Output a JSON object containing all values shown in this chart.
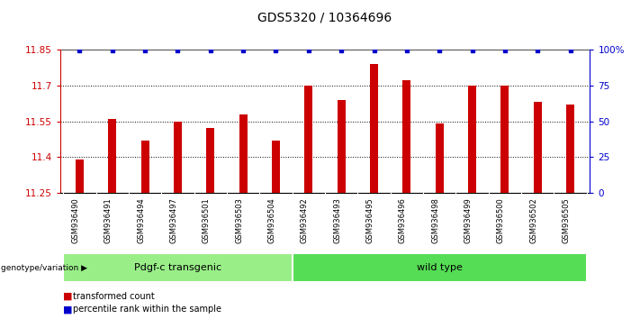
{
  "title": "GDS5320 / 10364696",
  "categories": [
    "GSM936490",
    "GSM936491",
    "GSM936494",
    "GSM936497",
    "GSM936501",
    "GSM936503",
    "GSM936504",
    "GSM936492",
    "GSM936493",
    "GSM936495",
    "GSM936496",
    "GSM936498",
    "GSM936499",
    "GSM936500",
    "GSM936502",
    "GSM936505"
  ],
  "bar_values": [
    11.39,
    11.56,
    11.47,
    11.55,
    11.52,
    11.58,
    11.47,
    11.7,
    11.64,
    11.79,
    11.72,
    11.54,
    11.7,
    11.7,
    11.63,
    11.62
  ],
  "bar_color": "#cc0000",
  "percentile_color": "#0000cc",
  "ymin": 11.25,
  "ymax": 11.85,
  "y_ticks": [
    11.25,
    11.4,
    11.55,
    11.7,
    11.85
  ],
  "y_right_ticks": [
    0,
    25,
    50,
    75,
    100
  ],
  "y_right_labels": [
    "0",
    "25",
    "50",
    "75",
    "100%"
  ],
  "group1_label": "Pdgf-c transgenic",
  "group2_label": "wild type",
  "group1_count": 7,
  "group2_count": 9,
  "genotype_label": "genotype/variation",
  "legend_bar_label": "transformed count",
  "legend_pct_label": "percentile rank within the sample",
  "group1_color": "#99ee88",
  "group2_color": "#55dd55",
  "bg_color": "#ffffff",
  "xlabel_area_color": "#c8c8c8",
  "dotted_lines": [
    11.4,
    11.55,
    11.7
  ],
  "bar_width": 0.25,
  "title_fontsize": 10,
  "tick_fontsize": 7.5,
  "label_fontsize": 7,
  "group_fontsize": 8
}
